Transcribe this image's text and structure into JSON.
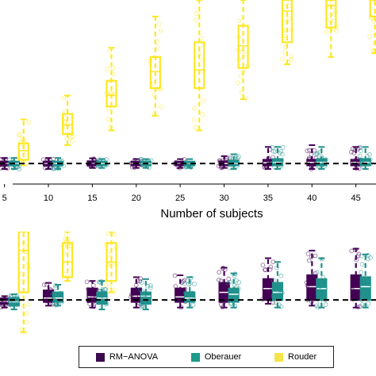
{
  "chart_data": {
    "type": "box",
    "xlabel": "Number of subjects",
    "x_ticks": [
      5,
      10,
      15,
      20,
      25,
      30,
      35,
      40,
      45
    ],
    "xlim": [
      4.4,
      47.2
    ],
    "n_subjects": [
      6,
      11,
      16,
      21,
      26,
      31,
      36,
      41,
      46
    ],
    "legend_placement": "bottom",
    "series": [
      {
        "name": "RM−ANOVA",
        "color": "#440154",
        "key_color": "#3b0a4f"
      },
      {
        "name": "Oberauer",
        "color": "#21918c",
        "key_color": "#1f9a8a"
      },
      {
        "name": "Rouder",
        "color": "#fde725",
        "key_color": "#f4e44a"
      }
    ],
    "panels": [
      {
        "reference_line": 0,
        "ylim": [
          -0.3,
          4.45
        ],
        "boxes": [
          [
            {
              "q1": -0.05,
              "median": 0.0,
              "q3": 0.05,
              "lo": -0.15,
              "hi": 0.15
            },
            {
              "q1": -0.05,
              "median": 0.0,
              "q3": 0.05,
              "lo": -0.15,
              "hi": 0.15
            },
            {
              "q1": -0.05,
              "median": 0.0,
              "q3": 0.06,
              "lo": -0.12,
              "hi": 0.14
            },
            {
              "q1": -0.05,
              "median": 0.0,
              "q3": 0.05,
              "lo": -0.12,
              "hi": 0.12
            },
            {
              "q1": -0.05,
              "median": 0.0,
              "q3": 0.05,
              "lo": -0.12,
              "hi": 0.12
            },
            {
              "q1": -0.05,
              "median": 0.0,
              "q3": 0.06,
              "lo": -0.12,
              "hi": 0.2
            },
            {
              "q1": -0.05,
              "median": 0.02,
              "q3": 0.1,
              "lo": -0.15,
              "hi": 0.45
            },
            {
              "q1": -0.05,
              "median": 0.03,
              "q3": 0.1,
              "lo": -0.15,
              "hi": 0.5
            },
            {
              "q1": -0.05,
              "median": 0.03,
              "q3": 0.1,
              "lo": -0.15,
              "hi": 0.45
            }
          ],
          [
            {
              "q1": -0.05,
              "median": 0.0,
              "q3": 0.05,
              "lo": -0.15,
              "hi": 0.15
            },
            {
              "q1": -0.05,
              "median": 0.0,
              "q3": 0.05,
              "lo": -0.15,
              "hi": 0.15
            },
            {
              "q1": -0.05,
              "median": 0.0,
              "q3": 0.05,
              "lo": -0.12,
              "hi": 0.12
            },
            {
              "q1": -0.05,
              "median": 0.0,
              "q3": 0.05,
              "lo": -0.12,
              "hi": 0.12
            },
            {
              "q1": -0.05,
              "median": 0.0,
              "q3": 0.05,
              "lo": -0.12,
              "hi": 0.12
            },
            {
              "q1": -0.05,
              "median": 0.0,
              "q3": 0.08,
              "lo": -0.15,
              "hi": 0.25
            },
            {
              "q1": -0.05,
              "median": 0.03,
              "q3": 0.12,
              "lo": -0.15,
              "hi": 0.45
            },
            {
              "q1": -0.05,
              "median": 0.03,
              "q3": 0.12,
              "lo": -0.15,
              "hi": 0.45
            },
            {
              "q1": -0.05,
              "median": 0.03,
              "q3": 0.12,
              "lo": -0.15,
              "hi": 0.45
            }
          ],
          [
            {
              "q1": 0.1,
              "median": 0.35,
              "q3": 0.55,
              "lo": -0.05,
              "hi": 1.2
            },
            {
              "q1": 0.8,
              "median": 1.05,
              "q3": 1.35,
              "lo": 0.5,
              "hi": 1.85
            },
            {
              "q1": 1.55,
              "median": 1.85,
              "q3": 2.25,
              "lo": 0.9,
              "hi": 3.15
            },
            {
              "q1": 2.05,
              "median": 2.5,
              "q3": 2.9,
              "lo": 1.3,
              "hi": 4.0
            },
            {
              "q1": 2.05,
              "median": 2.55,
              "q3": 3.3,
              "lo": 0.9,
              "hi": 4.45
            },
            {
              "q1": 2.6,
              "median": 3.2,
              "q3": 3.75,
              "lo": 1.75,
              "hi": 4.45
            },
            {
              "q1": 3.3,
              "median": 4.15,
              "q3": 4.45,
              "lo": 2.7,
              "hi": 4.45
            },
            {
              "q1": 3.7,
              "median": 4.3,
              "q3": 4.45,
              "lo": 2.9,
              "hi": 4.45
            },
            {
              "q1": 4.0,
              "median": 4.45,
              "q3": 4.45,
              "lo": 3.0,
              "hi": 4.45
            }
          ]
        ]
      },
      {
        "reference_line": 0,
        "ylim": [
          -1.0,
          1.8
        ],
        "boxes": [
          [
            {
              "q1": -0.1,
              "median": -0.04,
              "q3": 0.04,
              "lo": -0.2,
              "hi": 0.1
            },
            {
              "q1": -0.05,
              "median": 0.05,
              "q3": 0.25,
              "lo": -0.15,
              "hi": 0.45
            },
            {
              "q1": -0.05,
              "median": 0.08,
              "q3": 0.3,
              "lo": -0.2,
              "hi": 0.5
            },
            {
              "q1": -0.05,
              "median": 0.1,
              "q3": 0.3,
              "lo": -0.2,
              "hi": 0.6
            },
            {
              "q1": -0.05,
              "median": 0.08,
              "q3": 0.3,
              "lo": -0.2,
              "hi": 0.65
            },
            {
              "q1": -0.05,
              "median": 0.2,
              "q3": 0.45,
              "lo": -0.2,
              "hi": 0.85
            },
            {
              "q1": 0.0,
              "median": 0.3,
              "q3": 0.55,
              "lo": -0.1,
              "hi": 1.1
            },
            {
              "q1": 0.0,
              "median": 0.35,
              "q3": 0.65,
              "lo": -0.15,
              "hi": 1.3
            },
            {
              "q1": 0.0,
              "median": 0.3,
              "q3": 0.65,
              "lo": -0.2,
              "hi": 1.35
            }
          ],
          [
            {
              "q1": -0.15,
              "median": -0.05,
              "q3": 0.05,
              "lo": -0.25,
              "hi": 0.15
            },
            {
              "q1": -0.05,
              "median": 0.05,
              "q3": 0.2,
              "lo": -0.15,
              "hi": 0.4
            },
            {
              "q1": -0.1,
              "median": 0.05,
              "q3": 0.2,
              "lo": -0.25,
              "hi": 0.5
            },
            {
              "q1": -0.1,
              "median": 0.1,
              "q3": 0.2,
              "lo": -0.25,
              "hi": 0.55
            },
            {
              "q1": -0.05,
              "median": 0.05,
              "q3": 0.2,
              "lo": -0.2,
              "hi": 0.6
            },
            {
              "q1": -0.05,
              "median": 0.15,
              "q3": 0.3,
              "lo": -0.2,
              "hi": 0.7
            },
            {
              "q1": 0.0,
              "median": 0.2,
              "q3": 0.45,
              "lo": -0.2,
              "hi": 1.0
            },
            {
              "q1": 0.0,
              "median": 0.3,
              "q3": 0.55,
              "lo": -0.2,
              "hi": 1.1
            },
            {
              "q1": 0.0,
              "median": 0.35,
              "q3": 0.6,
              "lo": -0.2,
              "hi": 1.2
            }
          ],
          [
            {
              "q1": 0.2,
              "median": 1.3,
              "q3": 1.8,
              "lo": -0.85,
              "hi": 1.8
            },
            {
              "q1": 0.6,
              "median": 1.0,
              "q3": 1.5,
              "lo": 0.5,
              "hi": 1.8
            },
            {
              "q1": 0.5,
              "median": 1.0,
              "q3": 1.5,
              "lo": 0.2,
              "hi": 1.8
            },
            null,
            null,
            null,
            null,
            null,
            null
          ]
        ]
      }
    ]
  },
  "legend": {
    "items": [
      {
        "label": "RM−ANOVA",
        "color": "#3b0a4f"
      },
      {
        "label": "Oberauer",
        "color": "#1f9a8a"
      },
      {
        "label": "Rouder",
        "color": "#f4e44a"
      }
    ]
  }
}
